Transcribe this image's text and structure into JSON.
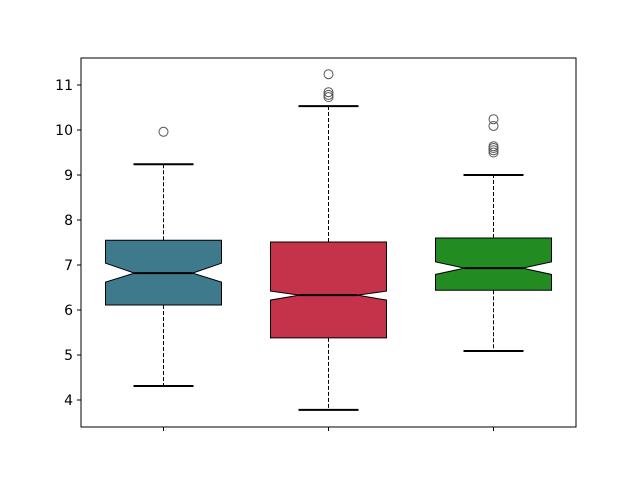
{
  "chart_data": {
    "type": "box",
    "notched": true,
    "title": "",
    "xlabel": "",
    "ylabel": "",
    "ylim": [
      3.4,
      11.6
    ],
    "yticks": [
      4,
      5,
      6,
      7,
      8,
      9,
      10,
      11
    ],
    "xtick_labels": [
      "",
      "",
      ""
    ],
    "grid": false,
    "whisker_style": "dashed",
    "boxes": [
      {
        "color": "#3f7a8c",
        "whisker_low": 4.31,
        "q1": 6.11,
        "notch_low": 6.62,
        "median": 6.82,
        "notch_high": 7.04,
        "q3": 7.55,
        "whisker_high": 9.24,
        "outliers": [
          9.96
        ]
      },
      {
        "color": "#c43349",
        "whisker_low": 3.78,
        "q1": 5.38,
        "notch_low": 6.22,
        "median": 6.33,
        "notch_high": 6.42,
        "q3": 7.51,
        "whisker_high": 10.53,
        "outliers": [
          11.24,
          10.84,
          10.78,
          10.73
        ]
      },
      {
        "color": "#228b22",
        "whisker_low": 5.09,
        "q1": 6.44,
        "notch_low": 6.79,
        "median": 6.93,
        "notch_high": 7.07,
        "q3": 7.6,
        "whisker_high": 9.0,
        "outliers": [
          10.24,
          10.09,
          9.64,
          9.6,
          9.55,
          9.5
        ]
      }
    ]
  }
}
